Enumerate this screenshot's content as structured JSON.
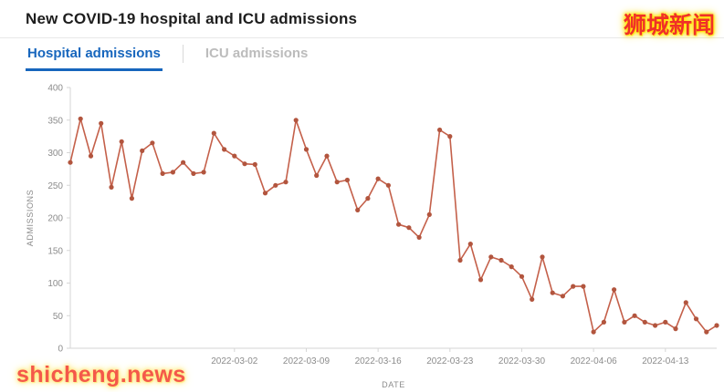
{
  "header": {
    "title": "New COVID-19 hospital and ICU admissions"
  },
  "watermarks": {
    "top_right": "狮城新闻",
    "bottom_left": "shicheng.news"
  },
  "tabs": [
    {
      "label": "Hospital admissions",
      "active": true
    },
    {
      "label": "ICU admissions",
      "active": false
    }
  ],
  "chart_data": {
    "type": "line",
    "series_name": "Hospital admissions",
    "xlabel": "DATE",
    "ylabel": "ADMISSIONS",
    "ylim": [
      0,
      400
    ],
    "yticks": [
      0,
      50,
      100,
      150,
      200,
      250,
      300,
      350,
      400
    ],
    "xticks": [
      "2022-03-02",
      "2022-03-09",
      "2022-03-16",
      "2022-03-23",
      "2022-03-30",
      "2022-04-06",
      "2022-04-13"
    ],
    "grid": false,
    "legend": "none",
    "colors": {
      "line": "#c4604a",
      "point": "#b2553e",
      "axis": "#d6d6d6",
      "tick_text": "#8c8c8c"
    },
    "x": [
      "2022-02-14",
      "2022-02-15",
      "2022-02-16",
      "2022-02-17",
      "2022-02-18",
      "2022-02-19",
      "2022-02-20",
      "2022-02-21",
      "2022-02-22",
      "2022-02-23",
      "2022-02-24",
      "2022-02-25",
      "2022-02-26",
      "2022-02-27",
      "2022-02-28",
      "2022-03-01",
      "2022-03-02",
      "2022-03-03",
      "2022-03-04",
      "2022-03-05",
      "2022-03-06",
      "2022-03-07",
      "2022-03-08",
      "2022-03-09",
      "2022-03-10",
      "2022-03-11",
      "2022-03-12",
      "2022-03-13",
      "2022-03-14",
      "2022-03-15",
      "2022-03-16",
      "2022-03-17",
      "2022-03-18",
      "2022-03-19",
      "2022-03-20",
      "2022-03-21",
      "2022-03-22",
      "2022-03-23",
      "2022-03-24",
      "2022-03-25",
      "2022-03-26",
      "2022-03-27",
      "2022-03-28",
      "2022-03-29",
      "2022-03-30",
      "2022-03-31",
      "2022-04-01",
      "2022-04-02",
      "2022-04-03",
      "2022-04-04",
      "2022-04-05",
      "2022-04-06",
      "2022-04-07",
      "2022-04-08",
      "2022-04-09",
      "2022-04-10",
      "2022-04-11",
      "2022-04-12",
      "2022-04-13",
      "2022-04-14",
      "2022-04-15",
      "2022-04-16",
      "2022-04-17",
      "2022-04-18"
    ],
    "y": [
      285,
      352,
      295,
      345,
      247,
      317,
      230,
      303,
      315,
      268,
      270,
      285,
      268,
      270,
      330,
      305,
      295,
      283,
      282,
      238,
      250,
      255,
      350,
      305,
      265,
      295,
      255,
      258,
      212,
      230,
      260,
      250,
      190,
      185,
      170,
      205,
      335,
      325,
      135,
      160,
      105,
      140,
      135,
      125,
      110,
      75,
      140,
      85,
      80,
      95,
      95,
      25,
      40,
      90,
      40,
      50,
      40,
      35,
      40,
      30,
      70,
      45,
      25,
      35
    ]
  }
}
